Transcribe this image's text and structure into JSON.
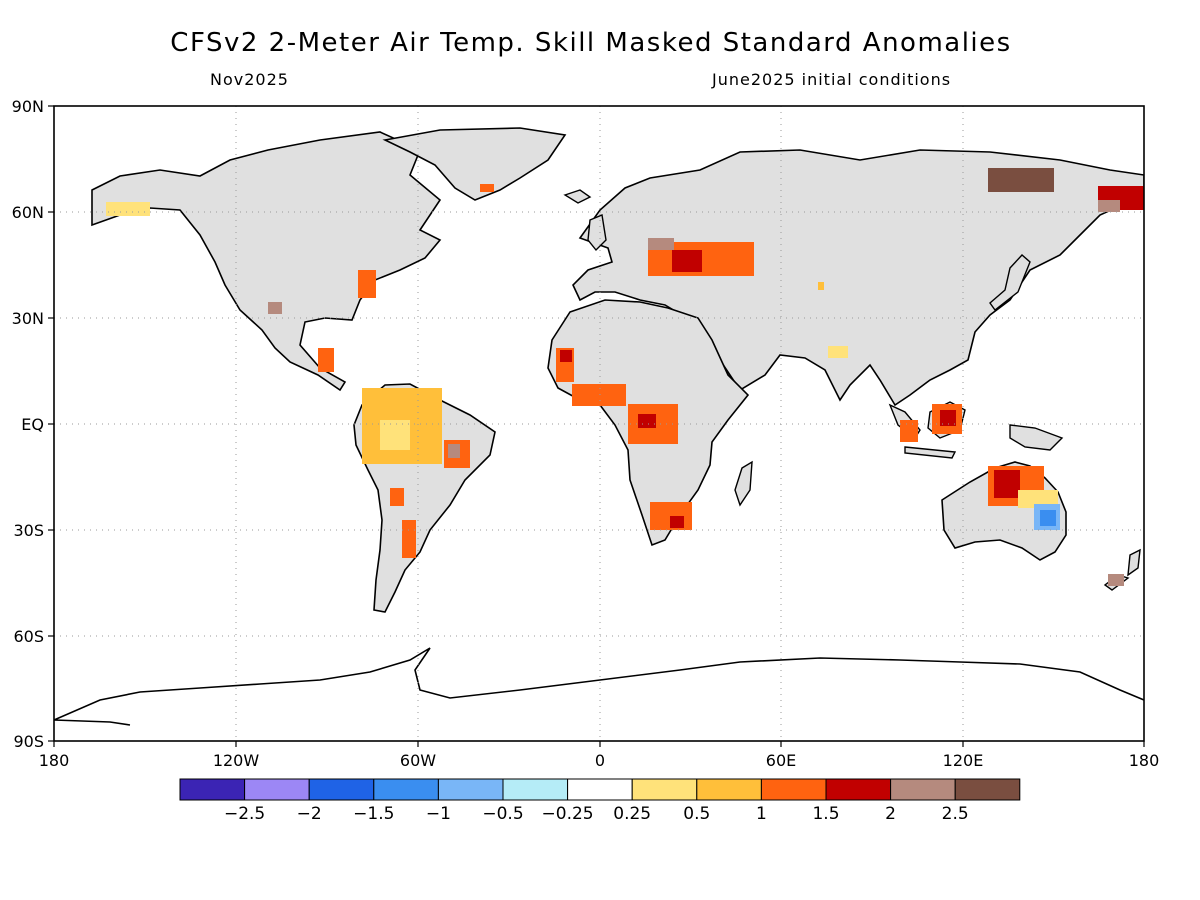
{
  "title": "CFSv2 2-Meter Air Temp. Skill Masked Standard Anomalies",
  "subtitle_left": "Nov2025",
  "subtitle_right": "June2025 initial conditions",
  "lat_labels": [
    "90N",
    "60N",
    "30N",
    "EQ",
    "30S",
    "60S",
    "90S"
  ],
  "lon_labels": [
    "180",
    "120W",
    "60W",
    "0",
    "60E",
    "120E",
    "180"
  ],
  "colorbar": {
    "colors": [
      "#3b24b4",
      "#9c87f5",
      "#1f63e6",
      "#3a8ef0",
      "#79b6f7",
      "#b5ecf7",
      "#ffffff",
      "#ffe27a",
      "#ffbf3a",
      "#ff6310",
      "#c10000",
      "#b58a7e",
      "#7a4e40"
    ],
    "labels": [
      "-2.5",
      "-2",
      "-1.5",
      "-1",
      "-0.5",
      "-0.25",
      "0.25",
      "0.5",
      "1",
      "1.5",
      "2",
      "2.5"
    ]
  },
  "colors": {
    "land": "#e0e0e0",
    "coast": "#000000",
    "grid": "#9a9a9a"
  }
}
